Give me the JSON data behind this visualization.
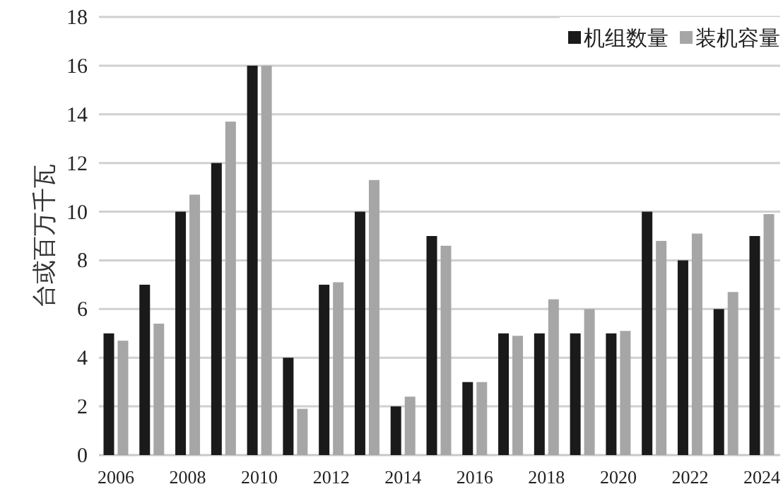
{
  "chart_data": {
    "type": "bar",
    "ylabel": "台或百万千瓦",
    "categories": [
      "2006",
      null,
      "2008",
      null,
      "2010",
      null,
      "2012",
      null,
      "2014",
      null,
      "2016",
      null,
      "2018",
      null,
      "2020",
      null,
      "2022",
      null,
      "2024"
    ],
    "series": [
      {
        "name": "机组数量",
        "color": "#1a1a1a",
        "values": [
          5,
          7,
          10,
          12,
          16,
          4,
          7,
          10,
          2,
          9,
          3,
          5,
          5,
          5,
          5,
          10,
          8,
          6,
          9
        ]
      },
      {
        "name": "装机容量",
        "color": "#a6a6a6",
        "values": [
          4.7,
          5.4,
          10.7,
          13.7,
          16,
          1.9,
          7.1,
          11.3,
          2.4,
          8.6,
          3.0,
          4.9,
          6.4,
          6.0,
          5.1,
          8.8,
          9.1,
          6.7,
          9.9
        ]
      }
    ],
    "ylim": [
      0,
      18
    ],
    "yticks": [
      0,
      2,
      4,
      6,
      8,
      10,
      12,
      14,
      16,
      18
    ],
    "grid": "y",
    "legend": "top right"
  }
}
